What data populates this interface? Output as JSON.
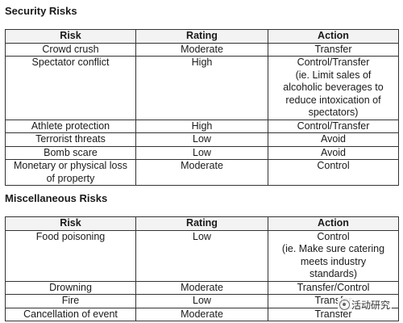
{
  "security": {
    "title": "Security Risks",
    "headers": [
      "Risk",
      "Rating",
      "Action"
    ],
    "rows": [
      {
        "risk": [
          "Crowd crush"
        ],
        "rating": [
          "Moderate"
        ],
        "action": [
          "Transfer"
        ]
      },
      {
        "risk": [
          "Spectator conflict"
        ],
        "rating": [
          "High"
        ],
        "action": [
          "Control/Transfer",
          "(ie. Limit sales of",
          "alcoholic beverages to",
          "reduce intoxication of",
          "spectators)"
        ]
      },
      {
        "risk": [
          "Athlete protection"
        ],
        "rating": [
          "High"
        ],
        "action": [
          "Control/Transfer"
        ]
      },
      {
        "risk": [
          "Terrorist threats"
        ],
        "rating": [
          "Low"
        ],
        "action": [
          "Avoid"
        ]
      },
      {
        "risk": [
          "Bomb scare"
        ],
        "rating": [
          "Low"
        ],
        "action": [
          "Avoid"
        ]
      },
      {
        "risk": [
          "Monetary or physical loss",
          "of property"
        ],
        "rating": [
          "Moderate"
        ],
        "action": [
          "Control"
        ]
      }
    ]
  },
  "misc": {
    "title": "Miscellaneous Risks",
    "headers": [
      "Risk",
      "Rating",
      "Action"
    ],
    "rows": [
      {
        "risk": [
          "Food poisoning"
        ],
        "rating": [
          "Low"
        ],
        "action": [
          "Control",
          "(ie. Make sure catering",
          "meets industry",
          "standards)"
        ]
      },
      {
        "risk": [
          "Drowning"
        ],
        "rating": [
          "Moderate"
        ],
        "action": [
          "Transfer/Control"
        ]
      },
      {
        "risk": [
          "Fire"
        ],
        "rating": [
          "Low"
        ],
        "action": [
          "Transfer"
        ]
      },
      {
        "risk": [
          "Cancellation of event"
        ],
        "rating": [
          "Moderate"
        ],
        "action": [
          "Transfer"
        ]
      }
    ]
  },
  "watermark": {
    "text": "活动研究"
  }
}
